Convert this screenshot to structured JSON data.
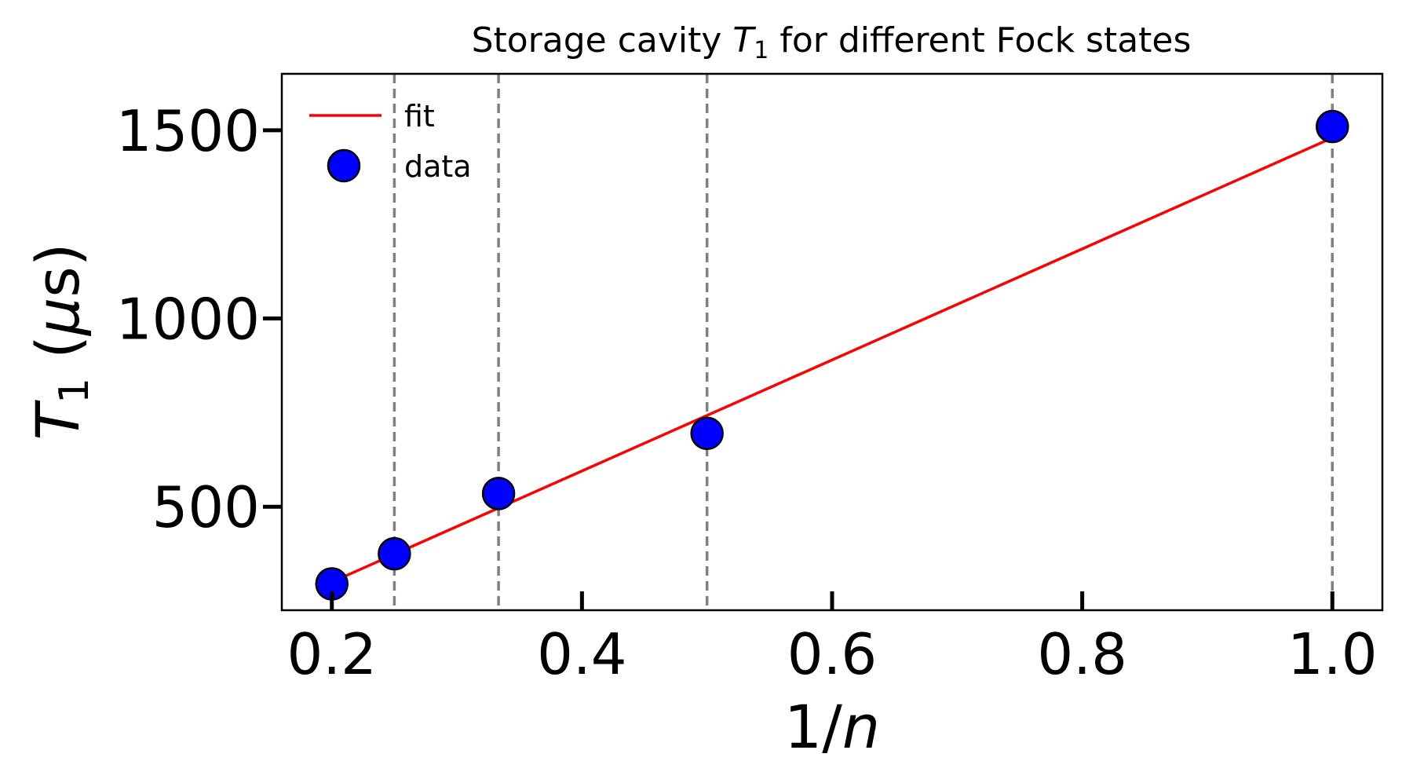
{
  "chart_data": {
    "type": "scatter",
    "title": {
      "prefix": "Storage cavity ",
      "symbol": "T",
      "subscript": "1",
      "suffix": " for different Fock states"
    },
    "xlabel": {
      "prefix": "1/",
      "symbol": "n"
    },
    "ylabel": {
      "symbol": "T",
      "subscript": "1",
      "open": " (",
      "mu": "μ",
      "unit": "s",
      "close": ")"
    },
    "xlim": [
      0.16,
      1.04
    ],
    "ylim": [
      225,
      1650
    ],
    "xticks": [
      {
        "value": 0.2,
        "label": "0.2"
      },
      {
        "value": 0.4,
        "label": "0.4"
      },
      {
        "value": 0.6,
        "label": "0.6"
      },
      {
        "value": 0.8,
        "label": "0.8"
      },
      {
        "value": 1.0,
        "label": "1.0"
      }
    ],
    "yticks": [
      {
        "value": 500,
        "label": "500"
      },
      {
        "value": 1000,
        "label": "1000"
      },
      {
        "value": 1500,
        "label": "1500"
      }
    ],
    "vlines": [
      0.25,
      0.3333,
      0.5,
      1.0
    ],
    "grid": false,
    "legend_position": "top-left",
    "series": [
      {
        "name": "fit",
        "kind": "line",
        "color": "#ff0000",
        "x": [
          0.2,
          1.0
        ],
        "y": [
          300,
          1480
        ]
      },
      {
        "name": "data",
        "kind": "scatter",
        "color": "#0000ff",
        "edge_color": "#000000",
        "x": [
          0.2,
          0.25,
          0.3333,
          0.5,
          1.0
        ],
        "y": [
          295,
          375,
          535,
          695,
          1510
        ]
      }
    ]
  }
}
